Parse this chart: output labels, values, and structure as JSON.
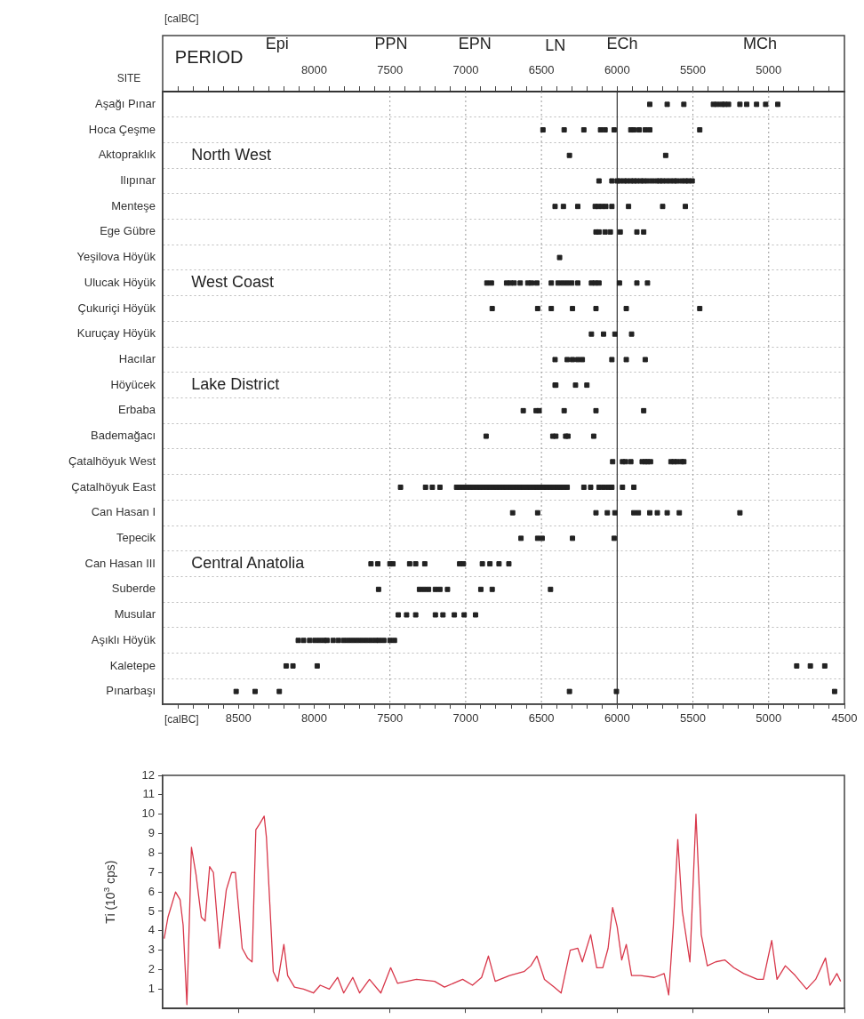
{
  "chart_data": [
    {
      "type": "scatter",
      "orientation": "horizontal",
      "x2label": "[calBC]",
      "xlabel": "[calBC]",
      "ylabel": "SITE",
      "categories": [
        "Aşağı Pınar",
        "Hoca Çeşme",
        "Aktopraklık",
        "Ilıpınar",
        "Menteşe",
        "Ege Gübre",
        "Yeşilova Höyük",
        "Ulucak Höyük",
        "Çukuriçi Höyük",
        "Kuruçay Höyük",
        "Hacılar",
        "Höyücek",
        "Erbaba",
        "Bademağacı",
        "Çatalhöyuk West",
        "Çatalhöyuk East",
        "Can Hasan I",
        "Tepecik",
        "Can Hasan III",
        "Suberde",
        "Musular",
        "Aşıklı Höyük",
        "Kaletepe",
        "Pınarbaşı"
      ],
      "xlim": [
        9000,
        4500
      ],
      "xticks": [
        {
          "value": 8900,
          "label": null
        },
        {
          "value": 8800,
          "label": null
        },
        {
          "value": 8700,
          "label": null
        },
        {
          "value": 8600,
          "label": null
        },
        8500,
        {
          "value": 8400,
          "label": null
        },
        {
          "value": 8300,
          "label": null
        },
        {
          "value": 8200,
          "label": null
        },
        {
          "value": 8100,
          "label": null
        },
        8000,
        {
          "value": 7900,
          "label": null
        },
        {
          "value": 7800,
          "label": null
        },
        {
          "value": 7700,
          "label": null
        },
        {
          "value": 7600,
          "label": null
        },
        7500,
        {
          "value": 7400,
          "label": null
        },
        {
          "value": 7300,
          "label": null
        },
        {
          "value": 7200,
          "label": null
        },
        {
          "value": 7100,
          "label": null
        },
        7000,
        {
          "value": 6900,
          "label": null
        },
        {
          "value": 6800,
          "label": null
        },
        {
          "value": 6700,
          "label": null
        },
        {
          "value": 6600,
          "label": null
        },
        6500,
        {
          "value": 6400,
          "label": null
        },
        {
          "value": 6300,
          "label": null
        },
        {
          "value": 6200,
          "label": null
        },
        {
          "value": 6100,
          "label": null
        },
        6000,
        {
          "value": 5900,
          "label": null
        },
        {
          "value": 5800,
          "label": null
        },
        {
          "value": 5700,
          "label": null
        },
        {
          "value": 5600,
          "label": null
        },
        5500,
        {
          "value": 5400,
          "label": null
        },
        {
          "value": 5300,
          "label": null
        },
        {
          "value": 5200,
          "label": null
        },
        {
          "value": 5100,
          "label": null
        },
        5000,
        {
          "value": 4900,
          "label": null
        },
        {
          "value": 4800,
          "label": null
        },
        {
          "value": 4700,
          "label": null
        },
        {
          "value": 4600,
          "label": null
        },
        4500
      ],
      "x2lim": [
        9000,
        4500
      ],
      "x2ticks": [
        {
          "value": 8900,
          "label": null
        },
        {
          "value": 8800,
          "label": null
        },
        {
          "value": 8700,
          "label": null
        },
        {
          "value": 8600,
          "label": null
        },
        {
          "value": 8500,
          "label": null
        },
        {
          "value": 8400,
          "label": null
        },
        {
          "value": 8300,
          "label": null
        },
        {
          "value": 8200,
          "label": null
        },
        {
          "value": 8100,
          "label": null
        },
        8000,
        {
          "value": 7900,
          "label": null
        },
        {
          "value": 7800,
          "label": null
        },
        {
          "value": 7700,
          "label": null
        },
        {
          "value": 7600,
          "label": null
        },
        7500,
        {
          "value": 7400,
          "label": null
        },
        {
          "value": 7300,
          "label": null
        },
        {
          "value": 7200,
          "label": null
        },
        {
          "value": 7100,
          "label": null
        },
        7000,
        {
          "value": 6900,
          "label": null
        },
        {
          "value": 6800,
          "label": null
        },
        {
          "value": 6700,
          "label": null
        },
        {
          "value": 6600,
          "label": null
        },
        6500,
        {
          "value": 6400,
          "label": null
        },
        {
          "value": 6300,
          "label": null
        },
        {
          "value": 6200,
          "label": null
        },
        {
          "value": 6100,
          "label": null
        },
        6000,
        {
          "value": 5900,
          "label": null
        },
        {
          "value": 5800,
          "label": null
        },
        {
          "value": 5700,
          "label": null
        },
        {
          "value": 5600,
          "label": null
        },
        5500,
        {
          "value": 5400,
          "label": null
        },
        {
          "value": 5300,
          "label": null
        },
        {
          "value": 5200,
          "label": null
        },
        {
          "value": 5100,
          "label": null
        },
        5000,
        {
          "value": 4900,
          "label": null
        },
        {
          "value": 4800,
          "label": null
        },
        {
          "value": 4700,
          "label": null
        },
        {
          "value": 4600,
          "label": null
        }
      ],
      "grid": "y",
      "marker": "square",
      "ref_lines": [
        {
          "axis": "x",
          "value": 7500,
          "color": "#999999",
          "line_style": "dotted"
        },
        {
          "axis": "x",
          "value": 7000,
          "color": "#999999",
          "line_style": "dotted"
        },
        {
          "axis": "x",
          "value": 6500,
          "color": "#999999",
          "line_style": "dotted"
        },
        {
          "axis": "x",
          "value": 6000,
          "color": "#333333",
          "line_style": "solid"
        },
        {
          "axis": "x",
          "value": 5500,
          "color": "#999999",
          "line_style": "dotted"
        },
        {
          "axis": "x",
          "value": 5000,
          "color": "#999999",
          "line_style": "dotted"
        }
      ],
      "annotations": [
        "PERIOD",
        "Epi",
        "PPN",
        "EPN",
        "LN",
        "ECh",
        "MCh",
        "North West",
        "West Coast",
        "Lake District",
        "Central Anatolia"
      ],
      "series": [
        {
          "color": "#222222",
          "x": [
            "Aşağı Pınar",
            "Aşağı Pınar",
            "Aşağı Pınar",
            "Aşağı Pınar",
            "Aşağı Pınar",
            "Aşağı Pınar",
            "Aşağı Pınar",
            "Aşağı Pınar",
            "Aşağı Pınar",
            "Aşağı Pınar",
            "Aşağı Pınar",
            "Aşağı Pınar",
            "Aşağı Pınar"
          ],
          "values": [
            5785,
            5670,
            5560,
            5365,
            5340,
            5310,
            5290,
            5265,
            5190,
            5145,
            5080,
            5020,
            4940
          ]
        },
        {
          "color": "#222222",
          "x": [
            "Hoca Çeşme",
            "Hoca Çeşme",
            "Hoca Çeşme",
            "Hoca Çeşme",
            "Hoca Çeşme",
            "Hoca Çeşme",
            "Hoca Çeşme",
            "Hoca Çeşme",
            "Hoca Çeşme",
            "Hoca Çeşme",
            "Hoca Çeşme",
            "Hoca Çeşme"
          ],
          "values": [
            6490,
            6350,
            6220,
            6110,
            6080,
            6020,
            5910,
            5890,
            5855,
            5815,
            5785,
            5455
          ]
        },
        {
          "color": "#222222",
          "x": [
            "Aktopraklık",
            "Aktopraklık"
          ],
          "values": [
            6315,
            5680
          ]
        },
        {
          "color": "#222222",
          "x": [
            "Ilıpınar",
            "Ilıpınar",
            "Ilıpınar",
            "Ilıpınar",
            "Ilıpınar",
            "Ilıpınar",
            "Ilıpınar",
            "Ilıpınar",
            "Ilıpınar",
            "Ilıpınar",
            "Ilıpınar",
            "Ilıpınar",
            "Ilıpınar",
            "Ilıpınar",
            "Ilıpınar",
            "Ilıpınar",
            "Ilıpınar",
            "Ilıpınar",
            "Ilıpınar",
            "Ilıpınar",
            "Ilıpınar",
            "Ilıpınar",
            "Ilıpınar",
            "Ilıpınar"
          ],
          "values": [
            6120,
            6035,
            6000,
            5980,
            5955,
            5935,
            5910,
            5890,
            5870,
            5845,
            5825,
            5800,
            5770,
            5740,
            5720,
            5700,
            5675,
            5650,
            5625,
            5605,
            5575,
            5550,
            5530,
            5505
          ]
        },
        {
          "color": "#222222",
          "x": [
            "Menteşe",
            "Menteşe",
            "Menteşe",
            "Menteşe",
            "Menteşe",
            "Menteşe",
            "Menteşe",
            "Menteşe",
            "Menteşe",
            "Menteşe",
            "Menteşe"
          ],
          "values": [
            6410,
            6355,
            6260,
            6145,
            6125,
            6100,
            6075,
            6035,
            5925,
            5700,
            5550
          ]
        },
        {
          "color": "#222222",
          "x": [
            "Ege Gübre",
            "Ege Gübre",
            "Ege Gübre",
            "Ege Gübre",
            "Ege Gübre",
            "Ege Gübre",
            "Ege Gübre"
          ],
          "values": [
            6140,
            6120,
            6080,
            6045,
            5980,
            5870,
            5825
          ]
        },
        {
          "color": "#222222",
          "x": [
            "Yeşilova Höyük"
          ],
          "values": [
            6380
          ]
        },
        {
          "color": "#222222",
          "x": [
            "Ulucak Höyük",
            "Ulucak Höyük",
            "Ulucak Höyük",
            "Ulucak Höyük",
            "Ulucak Höyük",
            "Ulucak Höyük",
            "Ulucak Höyük",
            "Ulucak Höyük",
            "Ulucak Höyük",
            "Ulucak Höyük",
            "Ulucak Höyük",
            "Ulucak Höyük",
            "Ulucak Höyük",
            "Ulucak Höyük",
            "Ulucak Höyük",
            "Ulucak Höyük",
            "Ulucak Höyük",
            "Ulucak Höyük",
            "Ulucak Höyük",
            "Ulucak Höyük",
            "Ulucak Höyük"
          ],
          "values": [
            6860,
            6830,
            6730,
            6705,
            6680,
            6640,
            6590,
            6565,
            6530,
            6435,
            6390,
            6360,
            6330,
            6300,
            6260,
            6170,
            6145,
            6120,
            5985,
            5870,
            5800
          ]
        },
        {
          "color": "#222222",
          "x": [
            "Çukuriçi Höyük",
            "Çukuriçi Höyük",
            "Çukuriçi Höyük",
            "Çukuriçi Höyük",
            "Çukuriçi Höyük",
            "Çukuriçi Höyük",
            "Çukuriçi Höyük"
          ],
          "values": [
            6825,
            6525,
            6435,
            6295,
            6140,
            5940,
            5455
          ]
        },
        {
          "color": "#222222",
          "x": [
            "Kuruçay Höyük",
            "Kuruçay Höyük",
            "Kuruçay Höyük",
            "Kuruçay Höyük"
          ],
          "values": [
            6170,
            6090,
            6015,
            5905
          ]
        },
        {
          "color": "#222222",
          "x": [
            "Hacılar",
            "Hacılar",
            "Hacılar",
            "Hacılar",
            "Hacılar",
            "Hacılar",
            "Hacılar",
            "Hacılar"
          ],
          "values": [
            6410,
            6330,
            6295,
            6260,
            6230,
            6035,
            5940,
            5815
          ]
        },
        {
          "color": "#222222",
          "x": [
            "Höyücek",
            "Höyücek",
            "Höyücek",
            "Höyücek"
          ],
          "values": [
            6410,
            6405,
            6275,
            6200
          ]
        },
        {
          "color": "#222222",
          "x": [
            "Erbaba",
            "Erbaba",
            "Erbaba",
            "Erbaba",
            "Erbaba",
            "Erbaba"
          ],
          "values": [
            6620,
            6535,
            6515,
            6350,
            6140,
            5825
          ]
        },
        {
          "color": "#222222",
          "x": [
            "Bademağacı",
            "Bademağacı",
            "Bademağacı",
            "Bademağacı",
            "Bademağacı",
            "Bademağacı"
          ],
          "values": [
            6865,
            6425,
            6405,
            6340,
            6325,
            6155
          ]
        },
        {
          "color": "#222222",
          "x": [
            "Çatalhöyuk West",
            "Çatalhöyuk West",
            "Çatalhöyuk West",
            "Çatalhöyuk West",
            "Çatalhöyuk West",
            "Çatalhöyuk West",
            "Çatalhöyuk West",
            "Çatalhöyuk West",
            "Çatalhöyuk West",
            "Çatalhöyuk West",
            "Çatalhöyuk West",
            "Çatalhöyuk West",
            "Çatalhöyuk West"
          ],
          "values": [
            6030,
            5965,
            5945,
            5910,
            5835,
            5815,
            5800,
            5780,
            5645,
            5625,
            5605,
            5575,
            5560
          ]
        },
        {
          "color": "#222222",
          "x": [
            "Çatalhöyuk East",
            "Çatalhöyuk East",
            "Çatalhöyuk East",
            "Çatalhöyuk East",
            "Çatalhöyuk East",
            "Çatalhöyuk East",
            "Çatalhöyuk East",
            "Çatalhöyuk East",
            "Çatalhöyuk East",
            "Çatalhöyuk East",
            "Çatalhöyuk East",
            "Çatalhöyuk East",
            "Çatalhöyuk East",
            "Çatalhöyuk East",
            "Çatalhöyuk East",
            "Çatalhöyuk East",
            "Çatalhöyuk East",
            "Çatalhöyuk East",
            "Çatalhöyuk East",
            "Çatalhöyuk East",
            "Çatalhöyuk East",
            "Çatalhöyuk East",
            "Çatalhöyuk East",
            "Çatalhöyuk East",
            "Çatalhöyuk East",
            "Çatalhöyuk East",
            "Çatalhöyuk East",
            "Çatalhöyuk East",
            "Çatalhöyuk East",
            "Çatalhöyuk East",
            "Çatalhöyuk East",
            "Çatalhöyuk East",
            "Çatalhöyuk East",
            "Çatalhöyuk East",
            "Çatalhöyuk East",
            "Çatalhöyuk East",
            "Çatalhöyuk East",
            "Çatalhöyuk East",
            "Çatalhöyuk East",
            "Çatalhöyuk East",
            "Çatalhöyuk East",
            "Çatalhöyuk East",
            "Çatalhöyuk East",
            "Çatalhöyuk East",
            "Çatalhöyuk East",
            "Çatalhöyuk East"
          ],
          "values": [
            7430,
            7265,
            7220,
            7170,
            7060,
            7040,
            7015,
            6995,
            6970,
            6950,
            6925,
            6905,
            6885,
            6860,
            6840,
            6815,
            6795,
            6775,
            6750,
            6730,
            6705,
            6685,
            6660,
            6640,
            6620,
            6595,
            6575,
            6550,
            6530,
            6510,
            6485,
            6465,
            6440,
            6420,
            6395,
            6375,
            6355,
            6330,
            6220,
            6175,
            6120,
            6090,
            6060,
            6035,
            5965,
            5890
          ]
        },
        {
          "color": "#222222",
          "x": [
            "Can Hasan I",
            "Can Hasan I",
            "Can Hasan I",
            "Can Hasan I",
            "Can Hasan I",
            "Can Hasan I",
            "Can Hasan I",
            "Can Hasan I",
            "Can Hasan I",
            "Can Hasan I",
            "Can Hasan I",
            "Can Hasan I"
          ],
          "values": [
            6690,
            6525,
            6140,
            6065,
            6015,
            5890,
            5860,
            5785,
            5735,
            5670,
            5590,
            5190
          ]
        },
        {
          "color": "#222222",
          "x": [
            "Tepecik",
            "Tepecik",
            "Tepecik",
            "Tepecik",
            "Tepecik"
          ],
          "values": [
            6635,
            6525,
            6495,
            6295,
            6020
          ]
        },
        {
          "color": "#222222",
          "x": [
            "Can Hasan III",
            "Can Hasan III",
            "Can Hasan III",
            "Can Hasan III",
            "Can Hasan III",
            "Can Hasan III",
            "Can Hasan III",
            "Can Hasan III",
            "Can Hasan III",
            "Can Hasan III",
            "Can Hasan III",
            "Can Hasan III",
            "Can Hasan III"
          ],
          "values": [
            7625,
            7580,
            7500,
            7480,
            7370,
            7330,
            7270,
            7040,
            7015,
            6890,
            6840,
            6780,
            6715
          ]
        },
        {
          "color": "#222222",
          "x": [
            "Suberde",
            "Suberde",
            "Suberde",
            "Suberde",
            "Suberde",
            "Suberde",
            "Suberde",
            "Suberde",
            "Suberde",
            "Suberde"
          ],
          "values": [
            7575,
            7305,
            7275,
            7245,
            7200,
            7170,
            7120,
            6900,
            6825,
            6440
          ]
        },
        {
          "color": "#222222",
          "x": [
            "Musular",
            "Musular",
            "Musular",
            "Musular",
            "Musular",
            "Musular",
            "Musular",
            "Musular"
          ],
          "values": [
            7445,
            7390,
            7330,
            7200,
            7150,
            7075,
            7010,
            6935
          ]
        },
        {
          "color": "#222222",
          "x": [
            "Aşıklı Höyük",
            "Aşıklı Höyük",
            "Aşıklı Höyük",
            "Aşıklı Höyük",
            "Aşıklı Höyük",
            "Aşıklı Höyük",
            "Aşıklı Höyük",
            "Aşıklı Höyük",
            "Aşıklı Höyük",
            "Aşıklı Höyük",
            "Aşıklı Höyük",
            "Aşıklı Höyük",
            "Aşıklı Höyük",
            "Aşıklı Höyük",
            "Aşıklı Höyük",
            "Aşıklı Höyük",
            "Aşıklı Höyük",
            "Aşıklı Höyük",
            "Aşıklı Höyük",
            "Aşıklı Höyük",
            "Aşıklı Höyük"
          ],
          "values": [
            8105,
            8070,
            8030,
            7995,
            7965,
            7935,
            7915,
            7875,
            7840,
            7805,
            7775,
            7745,
            7715,
            7685,
            7655,
            7625,
            7595,
            7570,
            7540,
            7500,
            7470
          ]
        },
        {
          "color": "#222222",
          "x": [
            "Kaletepe",
            "Kaletepe",
            "Kaletepe",
            "Kaletepe",
            "Kaletepe",
            "Kaletepe"
          ],
          "values": [
            8185,
            8140,
            7980,
            4815,
            4725,
            4630
          ]
        },
        {
          "color": "#222222",
          "x": [
            "Pınarbaşı",
            "Pınarbaşı",
            "Pınarbaşı",
            "Pınarbaşı",
            "Pınarbaşı",
            "Pınarbaşı"
          ],
          "values": [
            8515,
            8390,
            8230,
            6315,
            6005,
            4565
          ]
        }
      ]
    },
    {
      "type": "line",
      "ylabel": "Ti (10$^{3}$ cps)",
      "color": "#d8374a",
      "marker": "none",
      "tick_labels": "y",
      "xlim": [
        9000,
        4500
      ],
      "xticks": [
        8500,
        8000,
        7500,
        7000,
        6500,
        6000,
        5500,
        5000,
        4500
      ],
      "ylim": [
        0,
        12
      ],
      "yticks": [
        1,
        2,
        3,
        4,
        5,
        6,
        7,
        8,
        9,
        10,
        11,
        12
      ],
      "x": [
        8990,
        8965,
        8915,
        8885,
        8865,
        8840,
        8810,
        8780,
        8745,
        8720,
        8690,
        8665,
        8625,
        8580,
        8545,
        8520,
        8475,
        8440,
        8410,
        8385,
        8360,
        8330,
        8315,
        8270,
        8240,
        8200,
        8175,
        8130,
        8070,
        8005,
        7960,
        7900,
        7845,
        7805,
        7745,
        7700,
        7635,
        7560,
        7495,
        7450,
        7325,
        7205,
        7140,
        7020,
        6955,
        6895,
        6850,
        6805,
        6710,
        6615,
        6570,
        6530,
        6480,
        6415,
        6370,
        6310,
        6260,
        6230,
        6175,
        6135,
        6095,
        6060,
        6030,
        6000,
        5970,
        5940,
        5905,
        5845,
        5755,
        5690,
        5660,
        5630,
        5600,
        5570,
        5520,
        5480,
        5445,
        5405,
        5350,
        5290,
        5230,
        5165,
        5075,
        5035,
        4980,
        4945,
        4890,
        4825,
        4750,
        4690,
        4625,
        4595,
        4550,
        4525
      ],
      "values": [
        3.6,
        4.7,
        6.0,
        5.6,
        4.3,
        0.2,
        8.3,
        6.9,
        4.7,
        4.5,
        7.3,
        7.0,
        3.1,
        6.1,
        7.0,
        7.0,
        3.1,
        2.6,
        2.4,
        9.2,
        9.5,
        9.9,
        8.8,
        1.9,
        1.4,
        3.3,
        1.7,
        1.1,
        1.0,
        0.8,
        1.2,
        1.0,
        1.6,
        0.8,
        1.6,
        0.8,
        1.5,
        0.8,
        2.1,
        1.3,
        1.5,
        1.4,
        1.1,
        1.5,
        1.2,
        1.6,
        2.7,
        1.4,
        1.7,
        1.9,
        2.2,
        2.7,
        1.5,
        1.1,
        0.8,
        3.0,
        3.1,
        2.4,
        3.8,
        2.1,
        2.1,
        3.1,
        5.2,
        4.2,
        2.5,
        3.3,
        1.7,
        1.7,
        1.6,
        1.8,
        0.7,
        4.2,
        8.7,
        5.0,
        2.4,
        10.0,
        3.8,
        2.2,
        2.4,
        2.5,
        2.1,
        1.8,
        1.5,
        1.5,
        3.5,
        1.5,
        2.2,
        1.7,
        1.0,
        1.5,
        2.6,
        1.2,
        1.8,
        1.4
      ]
    }
  ]
}
